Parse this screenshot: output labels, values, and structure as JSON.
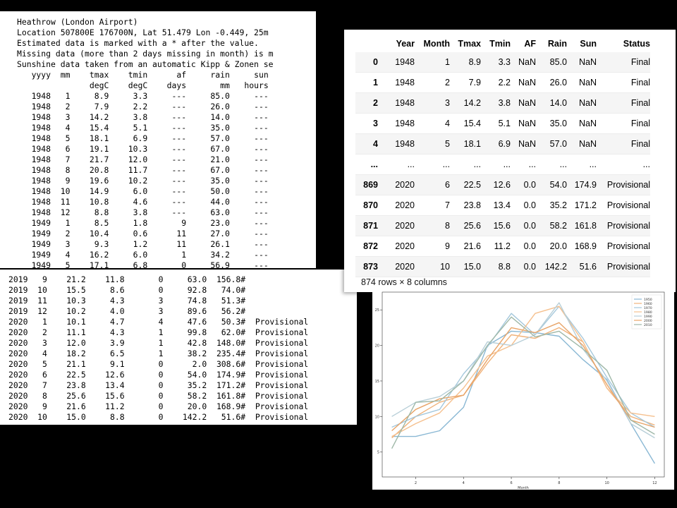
{
  "raw_text_top": {
    "header_lines": [
      "Heathrow (London Airport)",
      "Location 507800E 176700N, Lat 51.479 Lon -0.449, 25m",
      "Estimated data is marked with a * after the value.",
      "Missing data (more than 2 days missing in month) is m",
      "Sunshine data taken from an automatic Kipp & Zonen se"
    ],
    "col_headers": [
      "yyyy",
      "mm",
      "tmax",
      "tmin",
      "af",
      "rain",
      "sun"
    ],
    "col_units": [
      "",
      "",
      "degC",
      "degC",
      "days",
      "mm",
      "hours"
    ],
    "rows": [
      [
        "1948",
        "1",
        "8.9",
        "3.3",
        "---",
        "85.0",
        "---"
      ],
      [
        "1948",
        "2",
        "7.9",
        "2.2",
        "---",
        "26.0",
        "---"
      ],
      [
        "1948",
        "3",
        "14.2",
        "3.8",
        "---",
        "14.0",
        "---"
      ],
      [
        "1948",
        "4",
        "15.4",
        "5.1",
        "---",
        "35.0",
        "---"
      ],
      [
        "1948",
        "5",
        "18.1",
        "6.9",
        "---",
        "57.0",
        "---"
      ],
      [
        "1948",
        "6",
        "19.1",
        "10.3",
        "---",
        "67.0",
        "---"
      ],
      [
        "1948",
        "7",
        "21.7",
        "12.0",
        "---",
        "21.0",
        "---"
      ],
      [
        "1948",
        "8",
        "20.8",
        "11.7",
        "---",
        "67.0",
        "---"
      ],
      [
        "1948",
        "9",
        "19.6",
        "10.2",
        "---",
        "35.0",
        "---"
      ],
      [
        "1948",
        "10",
        "14.9",
        "6.0",
        "---",
        "50.0",
        "---"
      ],
      [
        "1948",
        "11",
        "10.8",
        "4.6",
        "---",
        "44.0",
        "---"
      ],
      [
        "1948",
        "12",
        "8.8",
        "3.8",
        "---",
        "63.0",
        "---"
      ],
      [
        "1949",
        "1",
        "8.5",
        "1.8",
        "9",
        "23.0",
        "---"
      ],
      [
        "1949",
        "2",
        "10.4",
        "0.6",
        "11",
        "27.0",
        "---"
      ],
      [
        "1949",
        "3",
        "9.3",
        "1.2",
        "11",
        "26.1",
        "---"
      ],
      [
        "1949",
        "4",
        "16.2",
        "6.0",
        "1",
        "34.2",
        "---"
      ],
      [
        "1949",
        "5",
        "17.1",
        "6.8",
        "0",
        "56.9",
        "---"
      ]
    ]
  },
  "raw_text_bottom": {
    "rows": [
      [
        "2019",
        "9",
        "21.2",
        "11.8",
        "0",
        "63.0",
        "156.8#",
        ""
      ],
      [
        "2019",
        "10",
        "15.5",
        "8.6",
        "0",
        "92.8",
        "74.0#",
        ""
      ],
      [
        "2019",
        "11",
        "10.3",
        "4.3",
        "3",
        "74.8",
        "51.3#",
        ""
      ],
      [
        "2019",
        "12",
        "10.2",
        "4.0",
        "3",
        "89.6",
        "56.2#",
        ""
      ],
      [
        "2020",
        "1",
        "10.1",
        "4.7",
        "4",
        "47.6",
        "50.3#",
        "Provisional"
      ],
      [
        "2020",
        "2",
        "11.1",
        "4.3",
        "1",
        "99.8",
        "62.0#",
        "Provisional"
      ],
      [
        "2020",
        "3",
        "12.0",
        "3.9",
        "1",
        "42.8",
        "148.0#",
        "Provisional"
      ],
      [
        "2020",
        "4",
        "18.2",
        "6.5",
        "1",
        "38.2",
        "235.4#",
        "Provisional"
      ],
      [
        "2020",
        "5",
        "21.1",
        "9.1",
        "0",
        "2.0",
        "308.6#",
        "Provisional"
      ],
      [
        "2020",
        "6",
        "22.5",
        "12.6",
        "0",
        "54.0",
        "174.9#",
        "Provisional"
      ],
      [
        "2020",
        "7",
        "23.8",
        "13.4",
        "0",
        "35.2",
        "171.2#",
        "Provisional"
      ],
      [
        "2020",
        "8",
        "25.6",
        "15.6",
        "0",
        "58.2",
        "161.8#",
        "Provisional"
      ],
      [
        "2020",
        "9",
        "21.6",
        "11.2",
        "0",
        "20.0",
        "168.9#",
        "Provisional"
      ],
      [
        "2020",
        "10",
        "15.0",
        "8.8",
        "0",
        "142.2",
        "51.6#",
        "Provisional"
      ]
    ]
  },
  "dataframe": {
    "columns": [
      "Year",
      "Month",
      "Tmax",
      "Tmin",
      "AF",
      "Rain",
      "Sun",
      "Status"
    ],
    "rows": [
      {
        "index": "0",
        "cells": [
          "1948",
          "1",
          "8.9",
          "3.3",
          "NaN",
          "85.0",
          "NaN",
          "Final"
        ]
      },
      {
        "index": "1",
        "cells": [
          "1948",
          "2",
          "7.9",
          "2.2",
          "NaN",
          "26.0",
          "NaN",
          "Final"
        ]
      },
      {
        "index": "2",
        "cells": [
          "1948",
          "3",
          "14.2",
          "3.8",
          "NaN",
          "14.0",
          "NaN",
          "Final"
        ]
      },
      {
        "index": "3",
        "cells": [
          "1948",
          "4",
          "15.4",
          "5.1",
          "NaN",
          "35.0",
          "NaN",
          "Final"
        ]
      },
      {
        "index": "4",
        "cells": [
          "1948",
          "5",
          "18.1",
          "6.9",
          "NaN",
          "57.0",
          "NaN",
          "Final"
        ]
      },
      {
        "index": "...",
        "cells": [
          "...",
          "...",
          "...",
          "...",
          "...",
          "...",
          "...",
          "..."
        ]
      },
      {
        "index": "869",
        "cells": [
          "2020",
          "6",
          "22.5",
          "12.6",
          "0.0",
          "54.0",
          "174.9",
          "Provisional"
        ]
      },
      {
        "index": "870",
        "cells": [
          "2020",
          "7",
          "23.8",
          "13.4",
          "0.0",
          "35.2",
          "171.2",
          "Provisional"
        ]
      },
      {
        "index": "871",
        "cells": [
          "2020",
          "8",
          "25.6",
          "15.6",
          "0.0",
          "58.2",
          "161.8",
          "Provisional"
        ]
      },
      {
        "index": "872",
        "cells": [
          "2020",
          "9",
          "21.6",
          "11.2",
          "0.0",
          "20.0",
          "168.9",
          "Provisional"
        ]
      },
      {
        "index": "873",
        "cells": [
          "2020",
          "10",
          "15.0",
          "8.8",
          "0.0",
          "142.2",
          "51.6",
          "Provisional"
        ]
      }
    ],
    "summary": "874 rows × 8 columns"
  },
  "chart_data": {
    "type": "line",
    "xlabel": "Month",
    "ylabel": "",
    "xlim": [
      0.6,
      12.4
    ],
    "ylim": [
      1.5,
      27.5
    ],
    "x_ticks": [
      2,
      4,
      6,
      8,
      10,
      12
    ],
    "y_ticks": [
      5,
      10,
      15,
      20,
      25
    ],
    "legend_position": "top-right",
    "x": [
      1,
      2,
      3,
      4,
      5,
      6,
      7,
      8,
      9,
      10,
      11,
      12
    ],
    "series": [
      {
        "name": "1950",
        "color": "#8ab8d4",
        "values": [
          7.2,
          7.2,
          8.0,
          11.3,
          20.0,
          22.0,
          21.8,
          21.3,
          18.0,
          15.2,
          9.0,
          3.4
        ]
      },
      {
        "name": "1960",
        "color": "#f0b27a",
        "values": [
          7.0,
          10.0,
          12.0,
          13.0,
          17.5,
          21.5,
          21.0,
          22.5,
          20.5,
          14.0,
          10.0,
          8.8
        ]
      },
      {
        "name": "1970",
        "color": "#a5c8dc",
        "values": [
          8.5,
          10.0,
          11.0,
          16.0,
          19.8,
          24.5,
          21.5,
          25.5,
          21.0,
          15.5,
          10.5,
          8.5
        ]
      },
      {
        "name": "1980",
        "color": "#f5c08e",
        "values": [
          7.2,
          9.0,
          10.5,
          14.0,
          18.5,
          20.0,
          24.5,
          25.5,
          20.5,
          14.0,
          10.5,
          10.0
        ]
      },
      {
        "name": "1990",
        "color": "#b8cfd8",
        "values": [
          10.0,
          12.0,
          12.8,
          15.0,
          20.5,
          20.0,
          21.5,
          26.0,
          19.5,
          15.0,
          9.0,
          7.0
        ]
      },
      {
        "name": "2000",
        "color": "#e8a468",
        "values": [
          8.0,
          11.0,
          12.5,
          13.0,
          18.0,
          22.5,
          21.8,
          23.2,
          20.0,
          14.5,
          9.5,
          8.5
        ]
      },
      {
        "name": "2010",
        "color": "#9fb8a8",
        "values": [
          5.5,
          12.0,
          12.2,
          15.0,
          20.0,
          24.0,
          21.2,
          22.0,
          19.5,
          16.5,
          9.5,
          7.5
        ]
      }
    ]
  }
}
